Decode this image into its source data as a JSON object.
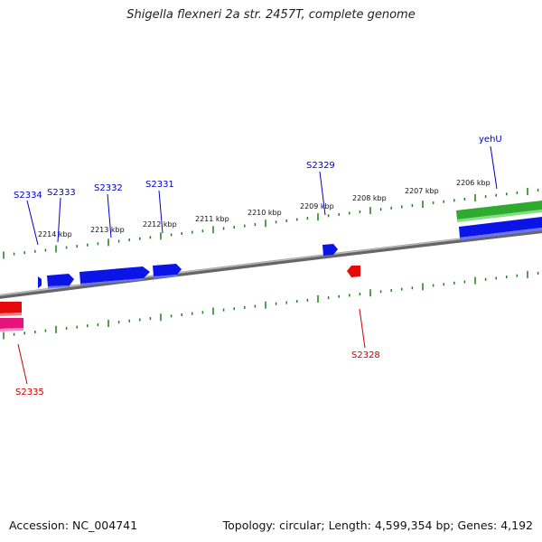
{
  "title": "Shigella flexneri 2a str. 2457T, complete genome",
  "footer": {
    "accession": "Accession: NC_004741",
    "topology": "Topology: circular; Length: 4,599,354 bp; Genes: 4,192"
  },
  "colors": {
    "backbone": "#8a8a8a",
    "tick": "#1e7d1e",
    "forward_gene": "#0a14e6",
    "reverse_gene": "#e60a0a",
    "rna_gene": "#3cc83c",
    "pseudo_gene": "#e6147a",
    "label_forward": "#0000c8",
    "label_reverse": "#c80000"
  },
  "scale_labels": [
    "2206 kbp",
    "2207 kbp",
    "2208 kbp",
    "2209 kbp",
    "2210 kbp",
    "2211 kbp",
    "2212 kbp",
    "2213 kbp",
    "2214 kbp"
  ],
  "genes": [
    {
      "label": "yehU",
      "strand": "forward"
    },
    {
      "label": "S2329",
      "strand": "forward"
    },
    {
      "label": "S2331",
      "strand": "forward"
    },
    {
      "label": "S2332",
      "strand": "forward"
    },
    {
      "label": "S2333",
      "strand": "forward"
    },
    {
      "label": "S2334",
      "strand": "forward"
    },
    {
      "label": "S2328",
      "strand": "reverse"
    },
    {
      "label": "S2335",
      "strand": "reverse"
    }
  ]
}
